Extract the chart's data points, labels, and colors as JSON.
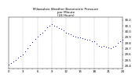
{
  "title": "Milwaukee Weather Barometric Pressure\nper Minute\n(24 Hours)",
  "title_fontsize": 3.0,
  "dot_color": "#0000cc",
  "dot_size": 0.6,
  "bg_color": "#ffffff",
  "grid_color": "#aaaaaa",
  "tick_color": "#000000",
  "tick_fontsize": 2.8,
  "xlim": [
    0,
    1440
  ],
  "ylim": [
    29.35,
    30.25
  ],
  "yticks": [
    29.4,
    29.5,
    29.6,
    29.7,
    29.8,
    29.9,
    30.0,
    30.1,
    30.2
  ],
  "xtick_positions": [
    0,
    60,
    120,
    180,
    240,
    300,
    360,
    420,
    480,
    540,
    600,
    660,
    720,
    780,
    840,
    900,
    960,
    1020,
    1080,
    1140,
    1200,
    1260,
    1320,
    1380,
    1440
  ],
  "xtick_labels": [
    "0",
    "1",
    "2",
    "3",
    "4",
    "5",
    "6",
    "7",
    "8",
    "9",
    "10",
    "11",
    "12",
    "13",
    "14",
    "15",
    "16",
    "17",
    "18",
    "19",
    "20",
    "21",
    "22",
    "23",
    "24"
  ],
  "vgrid_positions": [
    180,
    360,
    540,
    720,
    900,
    1080,
    1260
  ],
  "data_x": [
    0,
    30,
    60,
    90,
    120,
    150,
    180,
    210,
    240,
    270,
    300,
    330,
    360,
    390,
    420,
    450,
    480,
    510,
    540,
    570,
    600,
    630,
    660,
    690,
    720,
    750,
    780,
    810,
    840,
    870,
    900,
    930,
    960,
    990,
    1020,
    1050,
    1080,
    1110,
    1140,
    1170,
    1200,
    1230,
    1260,
    1290,
    1320,
    1350,
    1380,
    1410,
    1440
  ],
  "data_y": [
    29.42,
    29.44,
    29.47,
    29.5,
    29.54,
    29.57,
    29.6,
    29.65,
    29.71,
    29.76,
    29.81,
    29.87,
    29.91,
    29.95,
    29.98,
    30.02,
    30.07,
    30.1,
    30.12,
    30.1,
    30.08,
    30.06,
    30.04,
    30.01,
    29.98,
    29.96,
    29.95,
    29.92,
    29.91,
    29.9,
    29.89,
    29.88,
    29.87,
    29.86,
    29.85,
    29.83,
    29.82,
    29.78,
    29.74,
    29.73,
    29.74,
    29.73,
    29.72,
    29.71,
    29.73,
    29.75,
    29.8,
    29.83,
    29.85
  ]
}
